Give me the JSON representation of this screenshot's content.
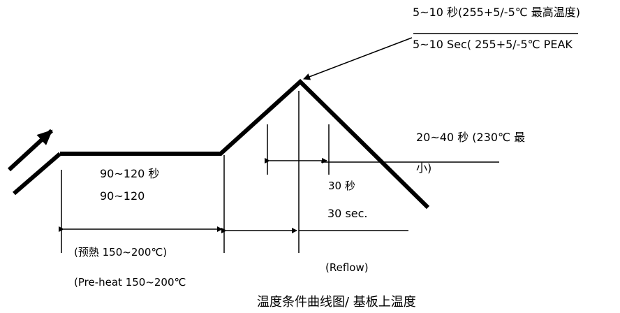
{
  "peak": {
    "label_cn": "5~10 秒(255+5/-5℃ 最高温度)",
    "label_en": "5~10 Sec( 255+5/-5℃ PEAK"
  },
  "above_min": {
    "label_line1": "20~40 秒 (230℃ 最",
    "label_line2": "小)"
  },
  "preheat": {
    "duration_cn": "90~120 秒",
    "duration_en": "90~120",
    "label_cn": "(预熱 150~200℃)",
    "label_en": "(Pre-heat 150~200℃"
  },
  "reflow": {
    "duration_cn": "30 秒",
    "duration_en": "30 sec.",
    "label": "(Reflow)"
  },
  "caption": "温度条件曲线图/ 基板上温度",
  "colors": {
    "line": "#000000",
    "background": "#ffffff"
  }
}
